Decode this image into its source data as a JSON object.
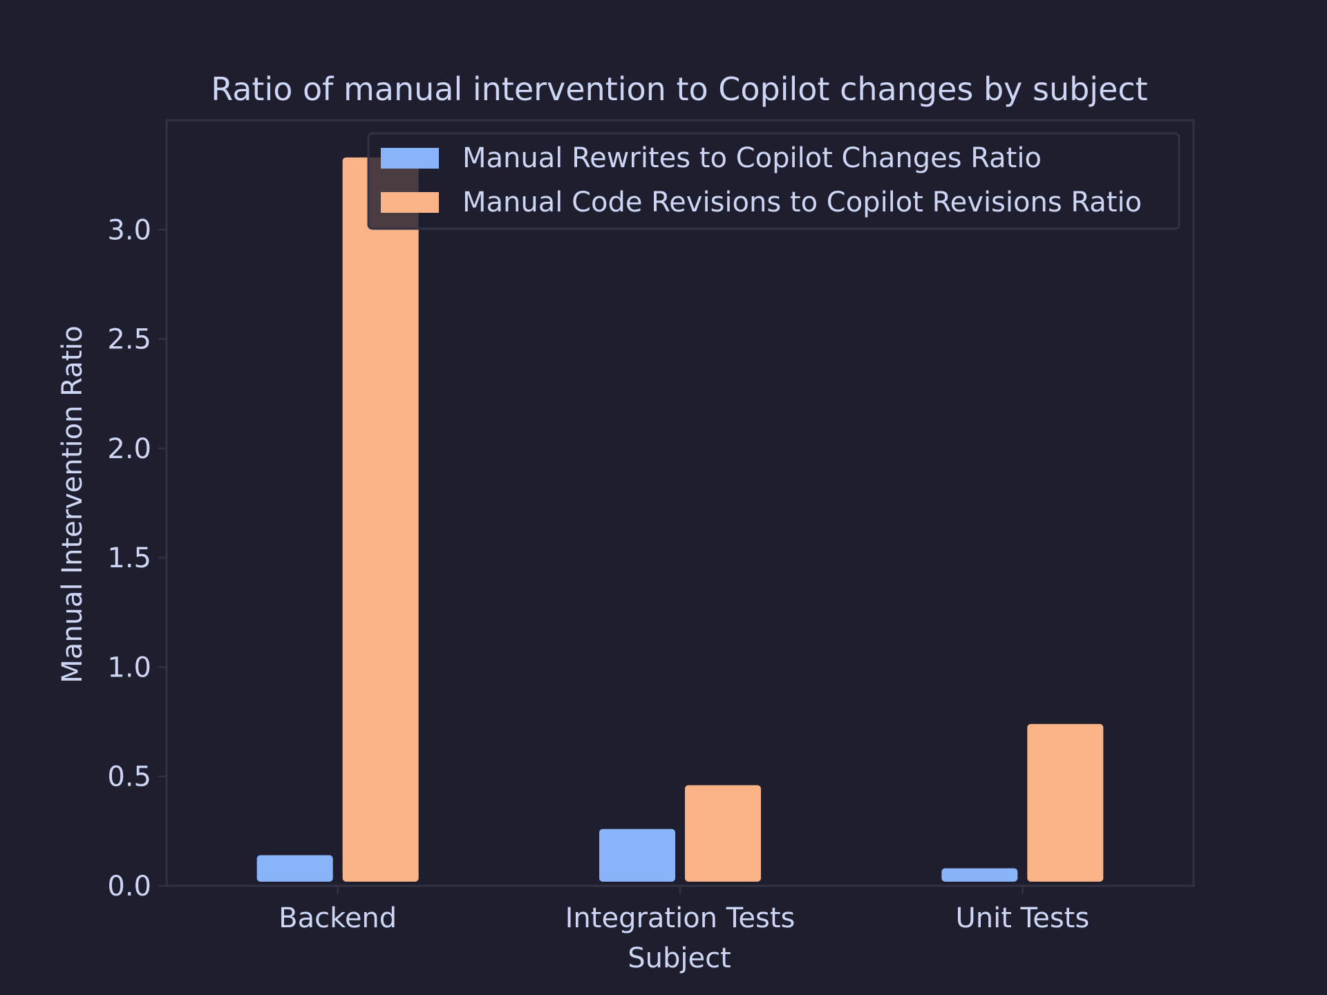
{
  "chart_data": {
    "type": "bar",
    "title": "Ratio of manual intervention to Copilot changes by subject",
    "xlabel": "Subject",
    "ylabel": "Manual Intervention Ratio",
    "categories": [
      "Backend",
      "Integration Tests",
      "Unit Tests"
    ],
    "series": [
      {
        "name": "Manual Rewrites to Copilot Changes Ratio",
        "color": "#89b4fa",
        "values": [
          0.14,
          0.26,
          0.08
        ]
      },
      {
        "name": "Manual Code Revisions to Copilot Revisions Ratio",
        "color": "#fab387",
        "values": [
          3.33,
          0.46,
          0.74
        ]
      }
    ],
    "ylim": [
      0,
      3.5
    ],
    "yticks": [
      "0.0",
      "0.5",
      "1.0",
      "1.5",
      "2.0",
      "2.5",
      "3.0"
    ],
    "grid": false,
    "legend_position": "top-right"
  },
  "colors": {
    "background": "#1e1e2e",
    "text": "#cdd6f4",
    "axis": "#313244"
  }
}
